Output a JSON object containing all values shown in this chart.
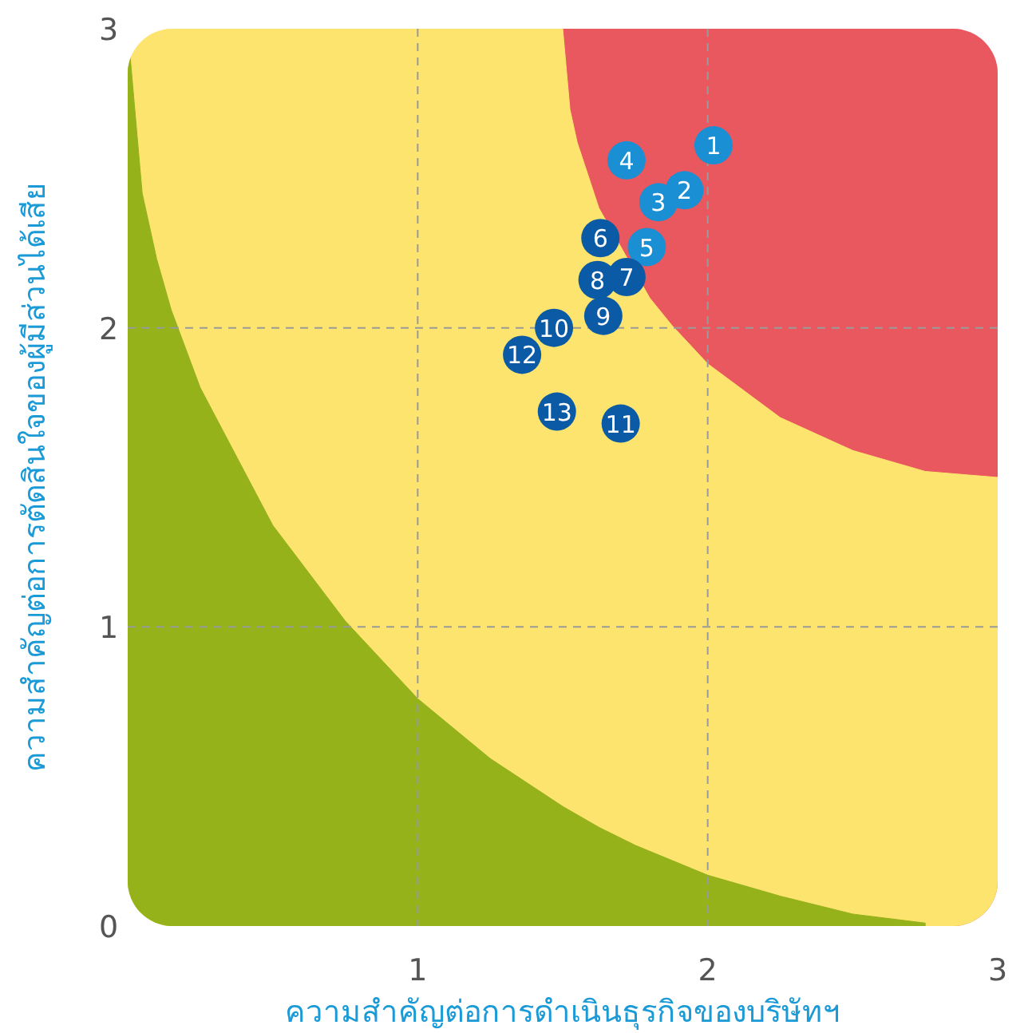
{
  "chart_data": {
    "type": "scatter",
    "xlabel": "ความสำคัญต่อการดำเนินธุรกิจของบริษัทฯ",
    "ylabel": "ความสำคัญต่อการตัดสินใจของผู้มีส่วนได้เสีย",
    "xlim": [
      0,
      3
    ],
    "ylim": [
      0,
      3
    ],
    "xticks": [
      1,
      2,
      3
    ],
    "yticks": [
      0,
      1,
      2,
      3
    ],
    "grid": true,
    "series": [
      {
        "type": "area",
        "color": "#e8585e",
        "x": [
          1.5,
          3
        ],
        "values": [
          3,
          3
        ]
      },
      {
        "type": "area",
        "color": "#fde46e",
        "x": [
          0,
          1.5,
          1.525,
          1.55,
          1.625,
          1.8,
          1.875,
          2,
          2.25,
          2.5,
          2.75,
          3
        ],
        "values": [
          3,
          3,
          2.73,
          2.62,
          2.4,
          2.1,
          2.01,
          1.88,
          1.7,
          1.59,
          1.52,
          1.5
        ]
      },
      {
        "type": "area",
        "color": "#95b21a",
        "x": [
          0,
          0.05,
          0.1,
          0.15,
          0.25,
          0.5,
          0.75,
          1,
          1.25,
          1.5,
          1.625,
          1.75,
          1.875,
          2,
          2.25,
          2.5,
          2.75
        ],
        "values": [
          3.0,
          2.45,
          2.23,
          2.06,
          1.8,
          1.34,
          1.02,
          0.76,
          0.56,
          0.4,
          0.33,
          0.27,
          0.22,
          0.17,
          0.1,
          0.04,
          0.01
        ]
      },
      {
        "marker": "circle",
        "color": "#1a8fd4",
        "x": [
          2.02,
          1.92,
          1.83,
          1.72,
          1.79
        ],
        "values": [
          2.61,
          2.46,
          2.42,
          2.56,
          2.27
        ]
      },
      {
        "marker": "circle",
        "color": "#0b5aa5",
        "x": [
          1.63,
          1.72,
          1.62,
          1.64,
          1.47,
          1.7,
          1.36,
          1.48
        ],
        "values": [
          2.3,
          2.17,
          2.16,
          2.04,
          2.0,
          1.68,
          1.91,
          1.72
        ]
      }
    ],
    "annotations": [
      {
        "text": "1",
        "x": 2.02,
        "y": 2.61
      },
      {
        "text": "2",
        "x": 1.92,
        "y": 2.46
      },
      {
        "text": "3",
        "x": 1.83,
        "y": 2.42
      },
      {
        "text": "4",
        "x": 1.72,
        "y": 2.56
      },
      {
        "text": "5",
        "x": 1.79,
        "y": 2.27
      },
      {
        "text": "6",
        "x": 1.63,
        "y": 2.3
      },
      {
        "text": "7",
        "x": 1.72,
        "y": 2.17
      },
      {
        "text": "8",
        "x": 1.62,
        "y": 2.16
      },
      {
        "text": "9",
        "x": 1.64,
        "y": 2.04
      },
      {
        "text": "10",
        "x": 1.47,
        "y": 2.0
      },
      {
        "text": "11",
        "x": 1.7,
        "y": 1.68
      },
      {
        "text": "12",
        "x": 1.36,
        "y": 1.91
      },
      {
        "text": "13",
        "x": 1.48,
        "y": 1.72
      }
    ]
  }
}
